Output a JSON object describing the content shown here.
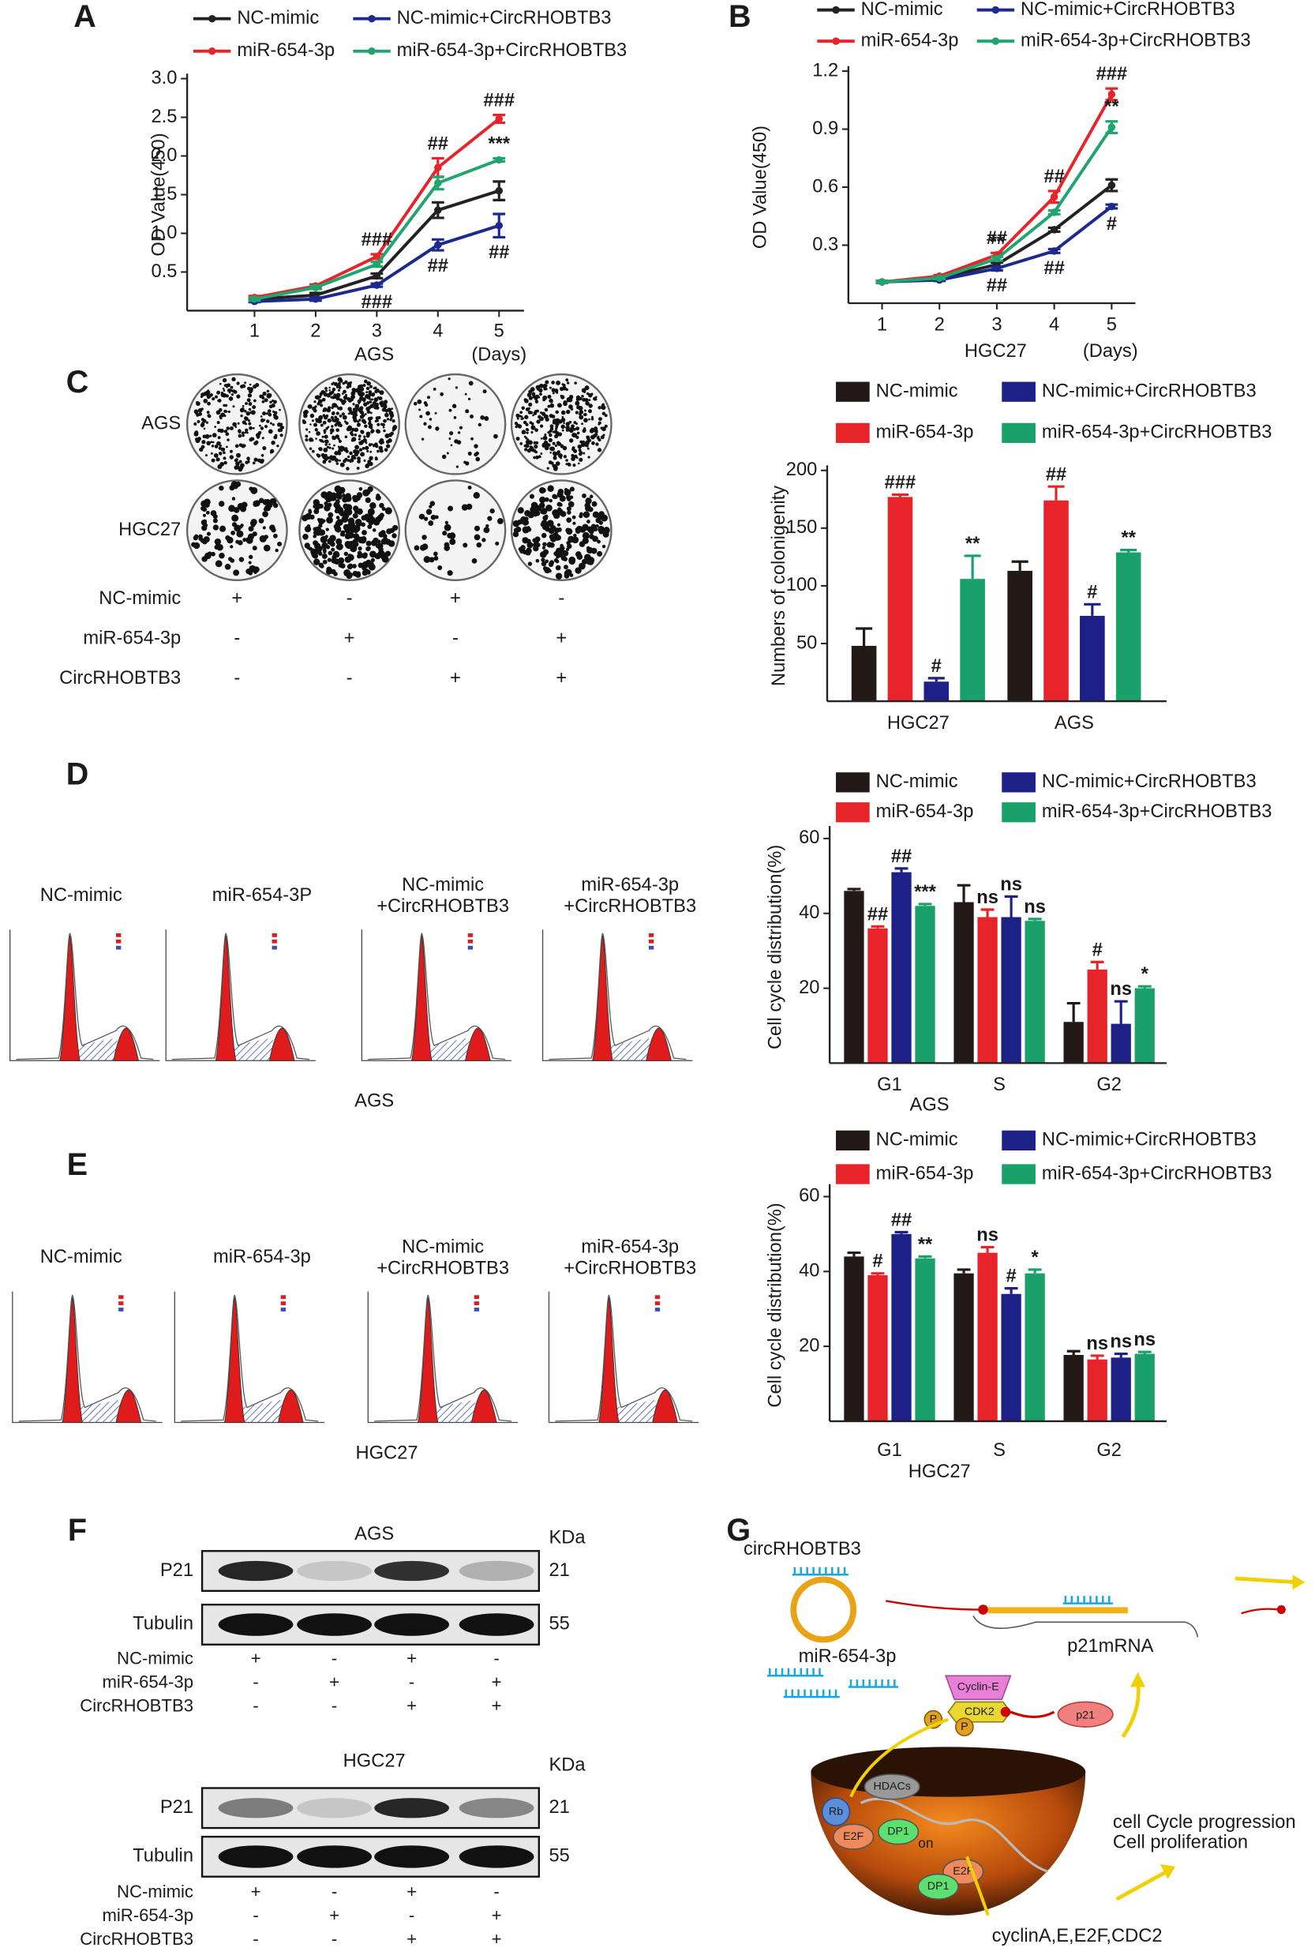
{
  "chart_data": [
    {
      "type": "line",
      "ylabel": "OD Value(450)",
      "xlabel": "AGS",
      "x_unit": "(Days)",
      "categories": [
        "1",
        "2",
        "3",
        "4",
        "5"
      ],
      "ylim": [
        0,
        3
      ],
      "yticks": [
        0.5,
        {
          "value": 1,
          "label": "1.0"
        },
        1.5,
        {
          "value": 2,
          "label": "2.0"
        },
        2.5,
        {
          "value": 3,
          "label": "3.0"
        }
      ],
      "series": [
        {
          "name": "NC-mimic",
          "color": "#222222",
          "values": [
            0.15,
            0.2,
            0.45,
            1.3,
            1.55
          ],
          "errors": [
            0.02,
            0.03,
            0.03,
            0.1,
            0.12
          ]
        },
        {
          "name": "miR-654-3p",
          "color": "#e8242b",
          "values": [
            0.17,
            0.32,
            0.7,
            1.85,
            2.48
          ],
          "errors": [
            0.02,
            0.02,
            0.03,
            0.12,
            0.05
          ]
        },
        {
          "name": "NC-mimic+CircRHOBTB3",
          "color": "#1c2a8f",
          "values": [
            0.12,
            0.15,
            0.33,
            0.85,
            1.1
          ],
          "errors": [
            0.01,
            0.02,
            0.02,
            0.07,
            0.15
          ]
        },
        {
          "name": "miR-654-3p+CircRHOBTB3",
          "color": "#1fa56d",
          "values": [
            0.15,
            0.3,
            0.6,
            1.65,
            1.95
          ],
          "errors": [
            0.02,
            0.02,
            0.03,
            0.08,
            0.02
          ]
        }
      ],
      "annotations": [
        {
          "text": "###",
          "category": "3",
          "series": "miR-654-3p",
          "side": "above"
        },
        {
          "text": "###",
          "category": "3",
          "series": "NC-mimic+CircRHOBTB3",
          "side": "below"
        },
        {
          "text": "##",
          "category": "4",
          "series": "miR-654-3p",
          "side": "above"
        },
        {
          "text": "##",
          "category": "4",
          "series": "NC-mimic+CircRHOBTB3",
          "side": "below"
        },
        {
          "text": "###",
          "category": "5",
          "series": "miR-654-3p",
          "side": "above"
        },
        {
          "text": "***",
          "category": "5",
          "series": "miR-654-3p+CircRHOBTB3",
          "side": "above"
        },
        {
          "text": "##",
          "category": "5",
          "series": "NC-mimic+CircRHOBTB3",
          "side": "below"
        }
      ]
    },
    {
      "type": "line",
      "ylabel": "OD Value(450)",
      "xlabel": "HGC27",
      "x_unit": "(Days)",
      "categories": [
        "1",
        "2",
        "3",
        "4",
        "5"
      ],
      "ylim": [
        0,
        1.2
      ],
      "yticks": [
        0.3,
        0.6,
        0.9,
        1.2
      ],
      "series": [
        {
          "name": "NC-mimic",
          "color": "#222222",
          "values": [
            0.11,
            0.13,
            0.2,
            0.38,
            0.61
          ],
          "errors": [
            0.005,
            0.005,
            0.01,
            0.01,
            0.03
          ]
        },
        {
          "name": "miR-654-3p",
          "color": "#e8242b",
          "values": [
            0.11,
            0.14,
            0.25,
            0.55,
            1.08
          ],
          "errors": [
            0.005,
            0.005,
            0.01,
            0.03,
            0.03
          ]
        },
        {
          "name": "NC-mimic+CircRHOBTB3",
          "color": "#1c2a8f",
          "values": [
            0.11,
            0.12,
            0.18,
            0.27,
            0.5
          ],
          "errors": [
            0.005,
            0.005,
            0.01,
            0.01,
            0.01
          ]
        },
        {
          "name": "miR-654-3p+CircRHOBTB3",
          "color": "#1fa56d",
          "values": [
            0.11,
            0.13,
            0.23,
            0.47,
            0.91
          ],
          "errors": [
            0.005,
            0.005,
            0.01,
            0.01,
            0.03
          ]
        }
      ],
      "annotations": [
        {
          "text": "##",
          "category": "3",
          "series": "miR-654-3p",
          "side": "above"
        },
        {
          "text": "**",
          "category": "3",
          "series": "miR-654-3p+CircRHOBTB3",
          "side": "above"
        },
        {
          "text": "##",
          "category": "3",
          "series": "NC-mimic+CircRHOBTB3",
          "side": "below"
        },
        {
          "text": "##",
          "category": "4",
          "series": "miR-654-3p",
          "side": "above"
        },
        {
          "text": "##",
          "category": "4",
          "series": "NC-mimic+CircRHOBTB3",
          "side": "below"
        },
        {
          "text": "###",
          "category": "5",
          "series": "miR-654-3p",
          "side": "above"
        },
        {
          "text": "**",
          "category": "5",
          "series": "miR-654-3p+CircRHOBTB3",
          "side": "above"
        },
        {
          "text": "#",
          "category": "5",
          "series": "NC-mimic+CircRHOBTB3",
          "side": "below"
        }
      ]
    },
    {
      "type": "bar",
      "ylabel": "Numbers of colonigenity",
      "categories": [
        "HGC27",
        "AGS"
      ],
      "ylim": [
        0,
        200
      ],
      "yticks": [
        50,
        100,
        150,
        200
      ],
      "series": [
        {
          "name": "NC-mimic",
          "color": "#231916",
          "values": [
            48,
            113
          ],
          "errors": [
            15,
            8
          ]
        },
        {
          "name": "miR-654-3p",
          "color": "#e8242b",
          "values": [
            177,
            174
          ],
          "errors": [
            2,
            12
          ]
        },
        {
          "name": "NC-mimic+CircRHOBTB3",
          "color": "#1d2087",
          "values": [
            17,
            74
          ],
          "errors": [
            3,
            10
          ]
        },
        {
          "name": "miR-654-3p+CircRHOBTB3",
          "color": "#1aa16a",
          "values": [
            106,
            129
          ],
          "errors": [
            20,
            2
          ]
        }
      ],
      "annotations": [
        {
          "text": "###",
          "category": "HGC27",
          "series": "miR-654-3p"
        },
        {
          "text": "#",
          "category": "HGC27",
          "series": "NC-mimic+CircRHOBTB3"
        },
        {
          "text": "**",
          "category": "HGC27",
          "series": "miR-654-3p+CircRHOBTB3"
        },
        {
          "text": "##",
          "category": "AGS",
          "series": "miR-654-3p"
        },
        {
          "text": "#",
          "category": "AGS",
          "series": "NC-mimic+CircRHOBTB3"
        },
        {
          "text": "**",
          "category": "AGS",
          "series": "miR-654-3p+CircRHOBTB3"
        }
      ]
    },
    {
      "type": "bar",
      "ylabel": "Cell cycle distribution(%)",
      "xlabel": "AGS",
      "categories": [
        "G1",
        "S",
        "G2"
      ],
      "ylim": [
        0,
        62
      ],
      "yticks": [
        20,
        40,
        60
      ],
      "series": [
        {
          "name": "NC-mimic",
          "color": "#231916",
          "values": [
            46,
            43,
            11
          ],
          "errors": [
            0.5,
            4.5,
            5
          ]
        },
        {
          "name": "miR-654-3p",
          "color": "#e8242b",
          "values": [
            36,
            39,
            25
          ],
          "errors": [
            0.5,
            2,
            2
          ]
        },
        {
          "name": "NC-mimic+CircRHOBTB3",
          "color": "#1d2087",
          "values": [
            51,
            39,
            10.5
          ],
          "errors": [
            1,
            5.5,
            6
          ]
        },
        {
          "name": "miR-654-3p+CircRHOBTB3",
          "color": "#1aa16a",
          "values": [
            42,
            38,
            20
          ],
          "errors": [
            0.5,
            0.5,
            0.5
          ]
        }
      ],
      "annotations": [
        {
          "text": "##",
          "category": "G1",
          "series": "miR-654-3p"
        },
        {
          "text": "##",
          "category": "G1",
          "series": "NC-mimic+CircRHOBTB3"
        },
        {
          "text": "***",
          "category": "G1",
          "series": "miR-654-3p+CircRHOBTB3"
        },
        {
          "text": "ns",
          "category": "S",
          "series": "miR-654-3p"
        },
        {
          "text": "ns",
          "category": "S",
          "series": "NC-mimic+CircRHOBTB3"
        },
        {
          "text": "ns",
          "category": "S",
          "series": "miR-654-3p+CircRHOBTB3"
        },
        {
          "text": "#",
          "category": "G2",
          "series": "miR-654-3p"
        },
        {
          "text": "ns",
          "category": "G2",
          "series": "NC-mimic+CircRHOBTB3"
        },
        {
          "text": "*",
          "category": "G2",
          "series": "miR-654-3p+CircRHOBTB3"
        }
      ]
    },
    {
      "type": "bar",
      "ylabel": "Cell cycle distribution(%)",
      "xlabel": "HGC27",
      "categories": [
        "G1",
        "S",
        "G2"
      ],
      "ylim": [
        0,
        62
      ],
      "yticks": [
        20,
        40,
        60
      ],
      "series": [
        {
          "name": "NC-mimic",
          "color": "#231916",
          "values": [
            44,
            39.5,
            17.7
          ],
          "errors": [
            1,
            1,
            1
          ]
        },
        {
          "name": "miR-654-3p",
          "color": "#e8242b",
          "values": [
            39,
            45,
            16.5
          ],
          "errors": [
            0.5,
            1.5,
            1
          ]
        },
        {
          "name": "NC-mimic+CircRHOBTB3",
          "color": "#1d2087",
          "values": [
            50,
            34,
            17
          ],
          "errors": [
            0.5,
            1.5,
            1
          ]
        },
        {
          "name": "miR-654-3p+CircRHOBTB3",
          "color": "#1aa16a",
          "values": [
            43.5,
            39.5,
            18
          ],
          "errors": [
            0.5,
            1,
            0.5
          ]
        }
      ],
      "annotations": [
        {
          "text": "#",
          "category": "G1",
          "series": "miR-654-3p"
        },
        {
          "text": "##",
          "category": "G1",
          "series": "NC-mimic+CircRHOBTB3"
        },
        {
          "text": "**",
          "category": "G1",
          "series": "miR-654-3p+CircRHOBTB3"
        },
        {
          "text": "ns",
          "category": "S",
          "series": "miR-654-3p"
        },
        {
          "text": "#",
          "category": "S",
          "series": "NC-mimic+CircRHOBTB3"
        },
        {
          "text": "*",
          "category": "S",
          "series": "miR-654-3p+CircRHOBTB3"
        },
        {
          "text": "ns",
          "category": "G2",
          "series": "miR-654-3p"
        },
        {
          "text": "ns",
          "category": "G2",
          "series": "NC-mimic+CircRHOBTB3"
        },
        {
          "text": "ns",
          "category": "G2",
          "series": "miR-654-3p+CircRHOBTB3"
        }
      ]
    }
  ],
  "figure": {
    "panel_labels": [
      "A",
      "B",
      "C",
      "D",
      "E",
      "F",
      "G"
    ],
    "colony": {
      "rows": [
        "AGS",
        "HGC27"
      ],
      "conditions": [
        {
          "name": "NC-mimic",
          "signs": [
            "+",
            "-",
            "+",
            "-"
          ]
        },
        {
          "name": "miR-654-3p",
          "signs": [
            "-",
            "+",
            "-",
            "+"
          ]
        },
        {
          "name": "CircRHOBTB3",
          "signs": [
            "-",
            "-",
            "+",
            "+"
          ]
        }
      ]
    },
    "flow_ags": {
      "titles": [
        [
          "NC-mimic"
        ],
        [
          "miR-654-3P"
        ],
        [
          "NC-mimic",
          "+CircRHOBTB3"
        ],
        [
          "miR-654-3p",
          "+CircRHOBTB3"
        ]
      ],
      "caption": "AGS"
    },
    "flow_hgc27": {
      "titles": [
        [
          "NC-mimic"
        ],
        [
          "miR-654-3p"
        ],
        [
          "NC-mimic",
          "+CircRHOBTB3"
        ],
        [
          "miR-654-3p",
          "+CircRHOBTB3"
        ]
      ],
      "caption": "HGC27"
    },
    "blots": [
      {
        "title": "AGS",
        "unit": "KDa",
        "rows": [
          {
            "name": "P21",
            "size": 21
          },
          {
            "name": "Tubulin",
            "size": 55
          }
        ],
        "conditions": [
          {
            "name": "NC-mimic",
            "signs": [
              "+",
              "-",
              "+",
              "-"
            ]
          },
          {
            "name": "miR-654-3p",
            "signs": [
              "-",
              "+",
              "-",
              "+"
            ]
          },
          {
            "name": "CircRHOBTB3",
            "signs": [
              "-",
              "-",
              "+",
              "+"
            ]
          }
        ]
      },
      {
        "title": "HGC27",
        "unit": "KDa",
        "rows": [
          {
            "name": "P21",
            "size": 21
          },
          {
            "name": "Tubulin",
            "size": 55
          }
        ],
        "conditions": [
          {
            "name": "NC-mimic",
            "signs": [
              "+",
              "-",
              "+",
              "-"
            ]
          },
          {
            "name": "miR-654-3p",
            "signs": [
              "-",
              "+",
              "-",
              "+"
            ]
          },
          {
            "name": "CircRHOBTB3",
            "signs": [
              "-",
              "-",
              "+",
              "+"
            ]
          }
        ]
      }
    ],
    "diagram": {
      "circ": "circRHOBTB3",
      "mrna": "p21mRNA",
      "mirna": "miR-654-3p",
      "cyclin_e": "Cyclin-E",
      "cdk2": "CDK2",
      "p21": "p21",
      "phospho": [
        "P",
        "P"
      ],
      "hdacs": "HDACs",
      "rb": "Rb",
      "e2f": [
        "E2F",
        "E2F"
      ],
      "dp1": [
        "DP1",
        "DP1"
      ],
      "on": "on",
      "outcome": [
        "cell Cycle progression",
        "Cell proliferation"
      ],
      "targets": "cyclinA,E,E2F,CDC2"
    }
  }
}
